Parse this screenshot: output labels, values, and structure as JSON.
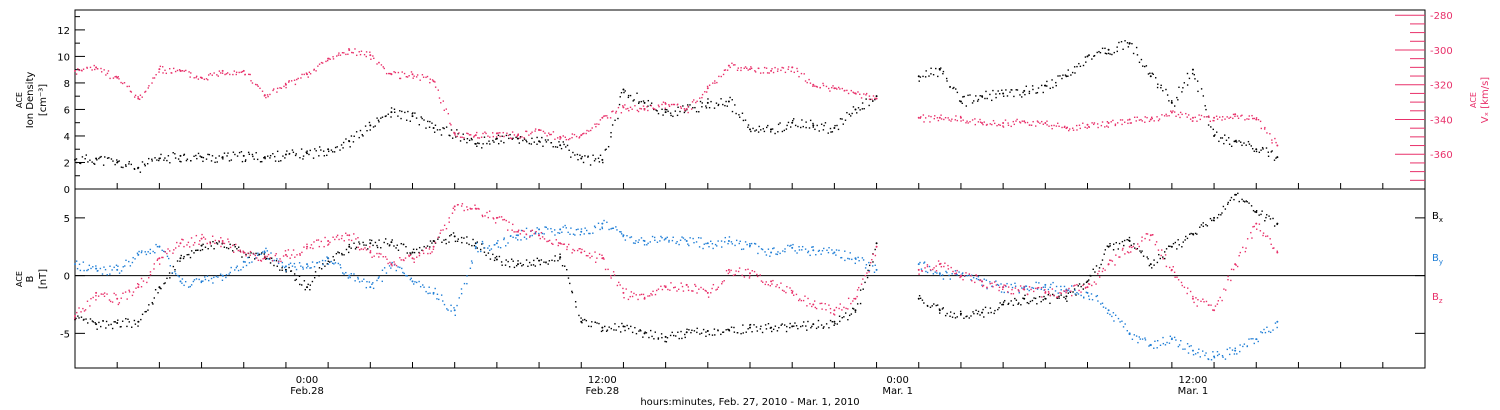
{
  "colors": {
    "black": "#000000",
    "blue": "#1f7ed6",
    "red": "#e8306a"
  },
  "chart_data": [
    {
      "type": "scatter",
      "panel": "top",
      "ylabel": "ACE Ion Density [cm⁻³]",
      "ylabel_line1": "ACE",
      "ylabel_line2": "Ion Density",
      "ylabel_line3": "[cm⁻³]",
      "ylim": [
        0,
        13.5
      ],
      "yticks": [
        0,
        2,
        4,
        6,
        8,
        10,
        12
      ],
      "yticklabels": [
        "0",
        "2",
        "4",
        "6",
        "8",
        "10",
        "12"
      ],
      "y2label": "ACE Vₓ [km/s]",
      "y2label_line1": "ACE",
      "y2label_line2": "Vₓ [km/s]",
      "y2lim": [
        -380,
        -277
      ],
      "y2ticks": [
        -280,
        -300,
        -320,
        -340,
        -360
      ],
      "y2ticklabels": [
        "-280",
        "-300",
        "-320",
        "-340",
        "-360"
      ],
      "series": [
        {
          "name": "Ion Density",
          "color": "#000000",
          "axis": "left",
          "x": [
            0,
            1,
            2,
            3,
            4,
            5,
            6,
            7,
            8,
            9,
            10,
            11,
            12,
            13,
            14,
            15,
            16,
            17,
            18,
            19,
            20,
            21,
            22,
            23,
            24,
            25,
            26,
            27,
            28,
            29,
            30,
            31,
            32,
            33,
            34,
            35,
            36,
            37,
            38,
            39,
            40,
            41,
            42,
            43,
            44,
            45,
            46,
            47,
            48,
            49,
            50,
            51,
            52,
            53,
            54,
            55,
            56,
            57
          ],
          "y": [
            2.2,
            2.3,
            2.0,
            1.6,
            2.3,
            2.5,
            2.4,
            2.4,
            2.5,
            2.4,
            2.6,
            2.7,
            3.0,
            3.6,
            4.8,
            5.8,
            5.5,
            4.6,
            4.2,
            3.4,
            3.8,
            3.8,
            3.6,
            3.3,
            2.3,
            2.2,
            7.5,
            6.5,
            5.8,
            6.0,
            6.5,
            6.6,
            4.5,
            4.5,
            5.0,
            4.8,
            4.6,
            6.0,
            7.0,
            null,
            8.5,
            9.0,
            6.6,
            7.0,
            7.2,
            7.4,
            7.8,
            8.5,
            10.0,
            10.5,
            11.0,
            8.5,
            6.5,
            9.0,
            4.0,
            3.6,
            3.0,
            2.4
          ]
        },
        {
          "name": "Vx",
          "color": "#e8306a",
          "axis": "right",
          "x": [
            0,
            1,
            2,
            3,
            4,
            5,
            6,
            7,
            8,
            9,
            10,
            11,
            12,
            13,
            14,
            15,
            16,
            17,
            18,
            19,
            20,
            21,
            22,
            23,
            24,
            25,
            26,
            27,
            28,
            29,
            30,
            31,
            32,
            33,
            34,
            35,
            36,
            37,
            38,
            39,
            40,
            41,
            42,
            43,
            44,
            45,
            46,
            47,
            48,
            49,
            50,
            51,
            52,
            53,
            54,
            55,
            56,
            57
          ],
          "y": [
            -312,
            -310,
            -316,
            -328,
            -311,
            -312,
            -316,
            -312,
            -312,
            -326,
            -320,
            -314,
            -305,
            -300,
            -303,
            -314,
            -314,
            -318,
            -348,
            -349,
            -348,
            -349,
            -346,
            -350,
            -349,
            -339,
            -333,
            -334,
            -331,
            -334,
            -322,
            -309,
            -311,
            -312,
            -310,
            -320,
            -322,
            -325,
            -328,
            null,
            -339,
            -339,
            -339,
            -342,
            -342,
            -341,
            -342,
            -345,
            -343,
            -342,
            -340,
            -340,
            -336,
            -339,
            -339,
            -337,
            -340,
            -355
          ]
        }
      ]
    },
    {
      "type": "scatter",
      "panel": "bottom",
      "ylabel": "ACE B [nT]",
      "ylabel_line1": "ACE",
      "ylabel_line2": "B",
      "ylabel_line3": "[nT]",
      "ylim": [
        -8,
        7.5
      ],
      "yticks": [
        -5,
        0,
        5
      ],
      "yticklabels": [
        "-5",
        "0",
        "5"
      ],
      "xlabel": "hours:minutes, Feb. 27, 2010 - Mar.  1, 2010",
      "xlim_hours": [
        0,
        64
      ],
      "xticks_hours": [
        11,
        25,
        39,
        53
      ],
      "xticklabels_time": [
        "0:00",
        "12:00",
        "0:00",
        "12:00"
      ],
      "xticklabels_date": [
        "Feb.28",
        "Feb.28",
        "Mar.  1",
        "Mar.  1"
      ],
      "legend_position": "right",
      "series": [
        {
          "name": "Bx",
          "label_main": "B",
          "label_sub": "x",
          "color": "#000000",
          "x": [
            0,
            1,
            2,
            3,
            4,
            5,
            6,
            7,
            8,
            9,
            10,
            11,
            12,
            13,
            14,
            15,
            16,
            17,
            18,
            19,
            20,
            21,
            22,
            23,
            24,
            25,
            26,
            27,
            28,
            29,
            30,
            31,
            32,
            33,
            34,
            35,
            36,
            37,
            38,
            39,
            40,
            41,
            42,
            43,
            44,
            45,
            46,
            47,
            48,
            49,
            50,
            51,
            52,
            53,
            54,
            55,
            56,
            57
          ],
          "y": [
            -3.8,
            -4.2,
            -4.1,
            -4.0,
            -1.0,
            1.5,
            2.6,
            2.8,
            2.0,
            1.6,
            0.5,
            -1.0,
            1.5,
            2.5,
            2.8,
            2.9,
            2.0,
            3.0,
            3.4,
            2.8,
            1.4,
            1.0,
            1.3,
            1.6,
            -4.0,
            -4.5,
            -4.4,
            -5.0,
            -5.3,
            -4.9,
            -4.8,
            -4.7,
            -4.5,
            -4.5,
            -4.4,
            -4.2,
            -4.0,
            -3.0,
            2.8,
            null,
            -2.0,
            -3.0,
            -3.3,
            -3.2,
            -2.5,
            -2.0,
            -2.0,
            -1.8,
            -0.5,
            2.5,
            3.0,
            1.0,
            2.5,
            3.6,
            5.0,
            7.0,
            5.5,
            4.5
          ]
        },
        {
          "name": "By",
          "label_main": "B",
          "label_sub": "y",
          "color": "#1f7ed6",
          "x": [
            0,
            1,
            2,
            3,
            4,
            5,
            6,
            7,
            8,
            9,
            10,
            11,
            12,
            13,
            14,
            15,
            16,
            17,
            18,
            19,
            20,
            21,
            22,
            23,
            24,
            25,
            26,
            27,
            28,
            29,
            30,
            31,
            32,
            33,
            34,
            35,
            36,
            37,
            38,
            39,
            40,
            41,
            42,
            43,
            44,
            45,
            46,
            47,
            48,
            49,
            50,
            51,
            52,
            53,
            54,
            55,
            56,
            57
          ],
          "y": [
            1.0,
            0.6,
            0.5,
            1.8,
            2.5,
            -0.5,
            -0.5,
            0.0,
            1.2,
            2.0,
            0.8,
            1.0,
            1.5,
            0.0,
            -1.0,
            1.0,
            -0.5,
            -1.5,
            -3.0,
            2.5,
            2.8,
            3.5,
            4.0,
            4.0,
            3.8,
            4.5,
            3.5,
            3.0,
            3.2,
            3.0,
            2.8,
            3.0,
            2.6,
            2.0,
            2.4,
            2.2,
            2.0,
            1.5,
            0.5,
            null,
            1.0,
            0.2,
            0.0,
            -0.5,
            -1.0,
            -1.0,
            -0.8,
            -1.2,
            -1.5,
            -3.0,
            -5.0,
            -6.0,
            -5.5,
            -6.5,
            -7.0,
            -6.5,
            -5.5,
            -4.0
          ]
        },
        {
          "name": "Bz",
          "label_main": "B",
          "label_sub": "z",
          "color": "#e8306a",
          "x": [
            0,
            1,
            2,
            3,
            4,
            5,
            6,
            7,
            8,
            9,
            10,
            11,
            12,
            13,
            14,
            15,
            16,
            17,
            18,
            19,
            20,
            21,
            22,
            23,
            24,
            25,
            26,
            27,
            28,
            29,
            30,
            31,
            32,
            33,
            34,
            35,
            36,
            37,
            38,
            39,
            40,
            41,
            42,
            43,
            44,
            45,
            46,
            47,
            48,
            49,
            50,
            51,
            52,
            53,
            54,
            55,
            56,
            57
          ],
          "y": [
            -3.5,
            -1.5,
            -2.0,
            -1.0,
            1.5,
            2.8,
            3.2,
            3.0,
            2.0,
            1.5,
            1.8,
            2.5,
            3.0,
            3.5,
            2.0,
            1.0,
            1.5,
            2.5,
            6.0,
            5.8,
            5.0,
            3.8,
            3.5,
            2.8,
            2.0,
            1.5,
            -1.5,
            -2.0,
            -1.0,
            -0.8,
            -1.5,
            0.5,
            0.2,
            -0.5,
            -1.5,
            -2.5,
            -3.0,
            -2.0,
            2.5,
            null,
            0.5,
            1.0,
            0.0,
            -0.5,
            -1.0,
            -1.2,
            -1.5,
            -1.3,
            -1.0,
            1.0,
            2.5,
            3.5,
            0.5,
            -2.0,
            -3.0,
            1.0,
            4.5,
            2.0
          ]
        }
      ]
    }
  ]
}
